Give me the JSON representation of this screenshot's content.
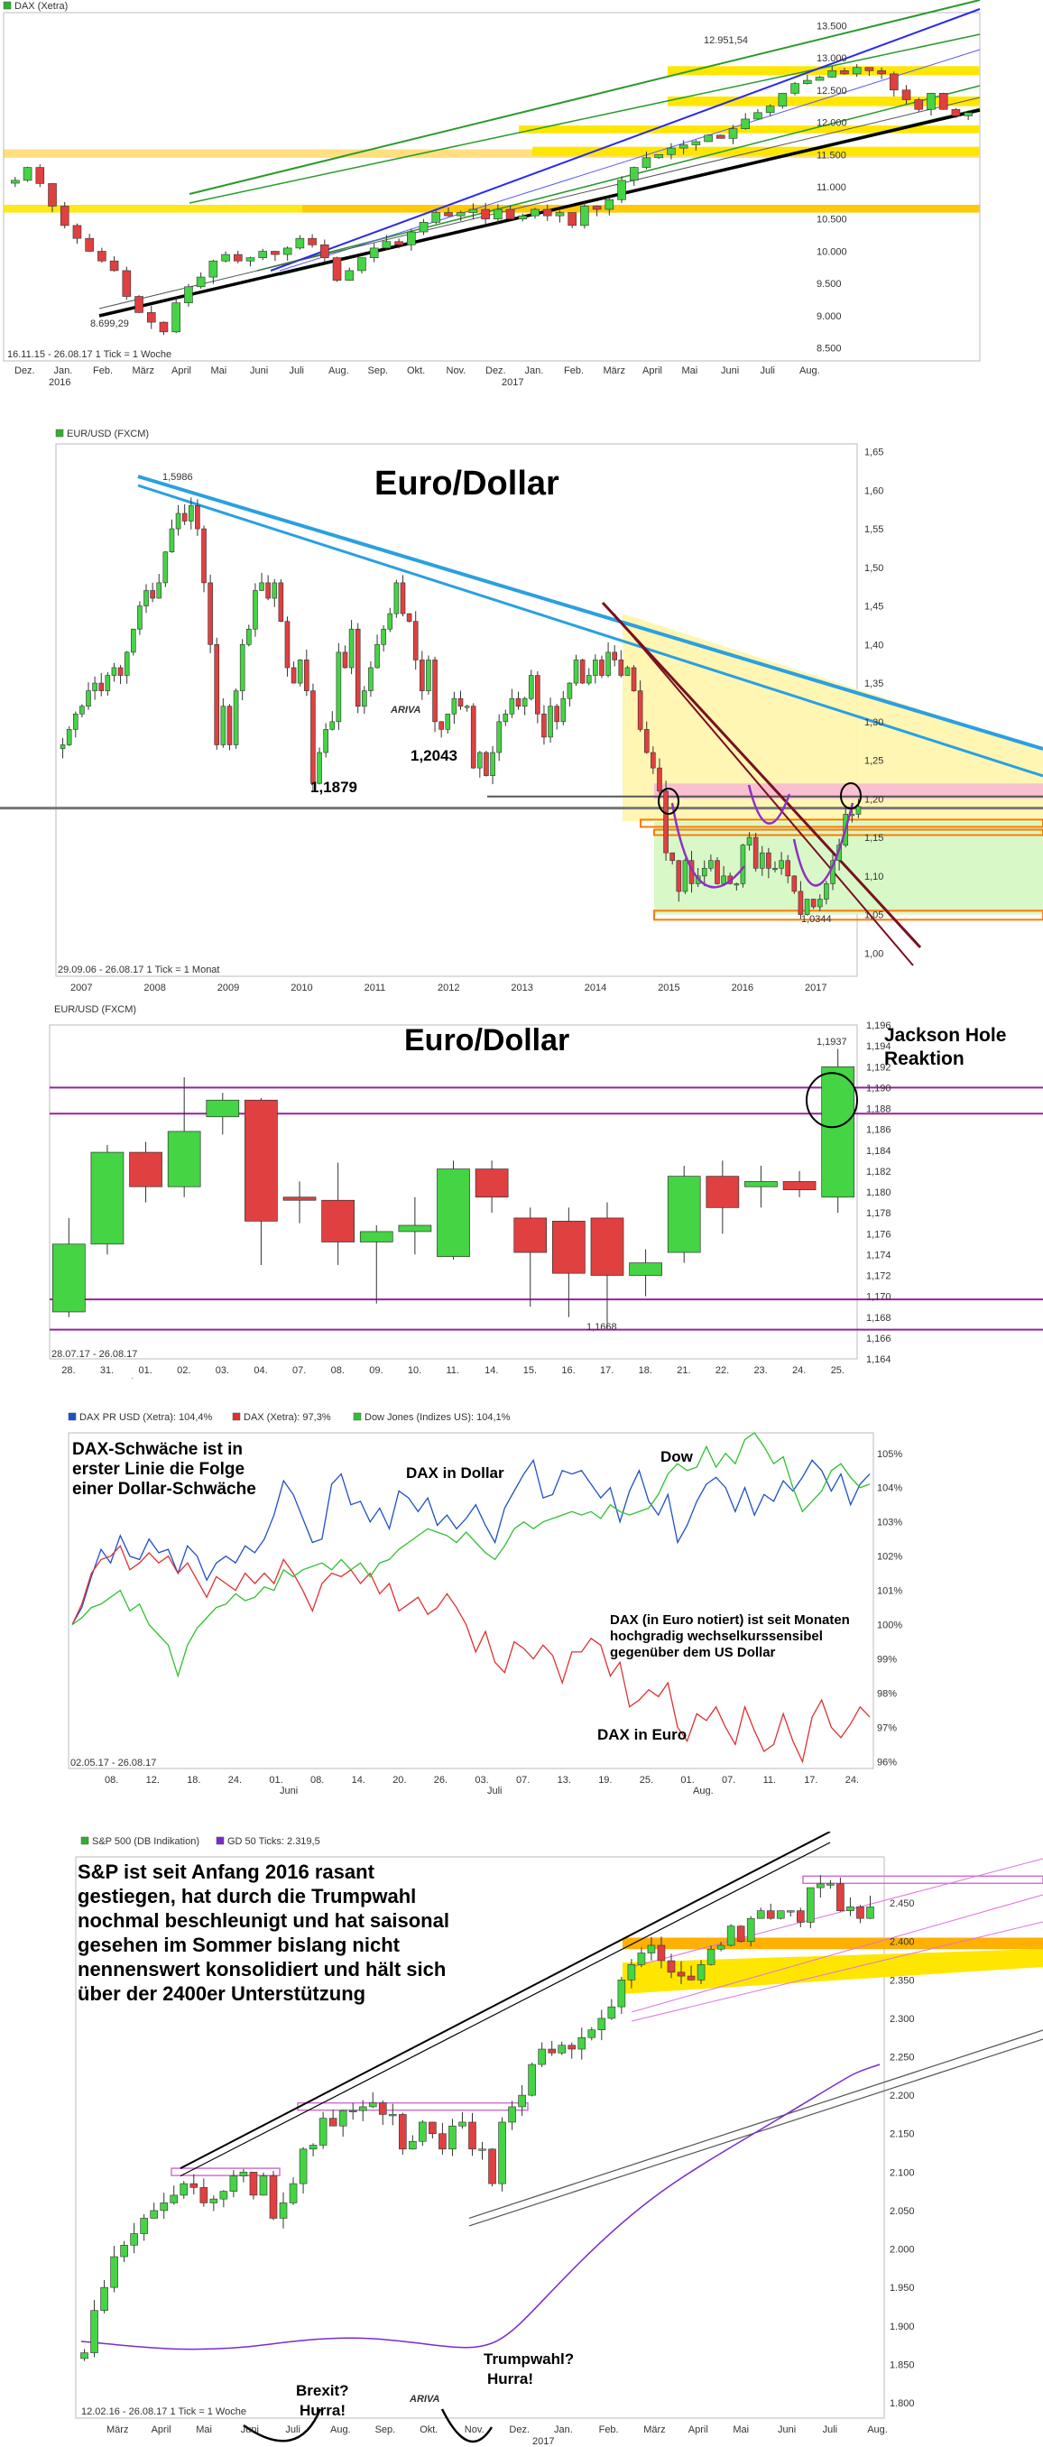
{
  "charts": {
    "dax": {
      "legend": "DAX (Xetra)",
      "yticks": [
        "13.500",
        "13.000",
        "12.500",
        "12.000",
        "11.500",
        "11.000",
        "10.500",
        "10.000",
        "9.500",
        "9.000",
        "8.500"
      ],
      "xticks": [
        "Dez.",
        "Jan.",
        "Feb.",
        "März",
        "April",
        "Mai",
        "Juni",
        "Juli",
        "Aug.",
        "Sep.",
        "Okt.",
        "Nov.",
        "Dez.",
        "Jan.",
        "Feb.",
        "März",
        "April",
        "Mai",
        "Juni",
        "Juli",
        "Aug."
      ],
      "xyear": [
        "2016",
        "2017"
      ],
      "low_label": "8.699,29",
      "high_label": "12.951,54",
      "footer": "16.11.15 - 26.08.17    1 Tick = 1 Woche"
    },
    "eurusd_long": {
      "legend": "EUR/USD (FXCM)",
      "title": "Euro/Dollar",
      "yticks": [
        "1,65",
        "1,60",
        "1,55",
        "1,50",
        "1,45",
        "1,40",
        "1,35",
        "1,30",
        "1,25",
        "1,20",
        "1,15",
        "1,10",
        "1,05",
        "1,00"
      ],
      "xticks": [
        "2007",
        "2008",
        "2009",
        "2010",
        "2011",
        "2012",
        "2013",
        "2014",
        "2015",
        "2016",
        "2017"
      ],
      "ann_1879": "1,1879",
      "ann_2043": "1,2043",
      "high_label": "1,5986",
      "low_label": "1,0344",
      "footer": "29.09.06 - 26.08.17    1 Tick = 1 Monat",
      "watermark": "ARIVA"
    },
    "eurusd_short": {
      "legend": "EUR/USD (FXCM)",
      "title": "Euro/Dollar",
      "note1": "Jackson Hole",
      "note2": "Reaktion",
      "yticks": [
        "1,196",
        "1,194",
        "1,192",
        "1,190",
        "1,188",
        "1,186",
        "1,184",
        "1,182",
        "1,180",
        "1,178",
        "1,176",
        "1,174",
        "1,172",
        "1,170",
        "1,168",
        "1,166",
        "1,164"
      ],
      "xticks": [
        "28.",
        "31.",
        "01.",
        "02.",
        "03.",
        "04.",
        "07.",
        "08.",
        "09.",
        "10.",
        "11.",
        "14.",
        "15.",
        "16.",
        "17.",
        "18.",
        "21.",
        "22.",
        "23.",
        "24.",
        "25."
      ],
      "xmonth": "Aug.",
      "high_label": "1,1937",
      "low_label": "1,1668",
      "footer": "28.07.17 - 26.08.17"
    },
    "compare": {
      "legend1": "DAX PR USD (Xetra): 104,4%",
      "legend2": "DAX (Xetra): 97,3%",
      "legend3": "Dow Jones (Indizes US): 104,1%",
      "note_a1": "DAX-Schwäche ist in",
      "note_a2": "erster Linie die Folge",
      "note_a3": "einer Dollar-Schwäche",
      "label_usd": "DAX in Dollar",
      "label_dow": "Dow",
      "label_eur": "DAX in Euro",
      "note_b1": "DAX (in Euro notiert) ist seit Monaten",
      "note_b2": "hochgradig wechselkurssensibel",
      "note_b3": "gegenüber dem US Dollar",
      "yticks": [
        "105%",
        "104%",
        "103%",
        "102%",
        "101%",
        "100%",
        "99%",
        "98%",
        "97%",
        "96%"
      ],
      "xticks": [
        "08.",
        "12.",
        "18.",
        "24.",
        "01.",
        "08.",
        "14.",
        "20.",
        "26.",
        "03.",
        "07.",
        "13.",
        "19.",
        "25.",
        "01.",
        "07.",
        "11.",
        "17.",
        "24."
      ],
      "xmonth1": "Juni",
      "xmonth2": "Juli",
      "xmonth3": "Aug.",
      "footer": "02.05.17 - 26.08.17"
    },
    "spx": {
      "legend1": "S&P 500 (DB Indikation)",
      "legend2": "GD 50 Ticks: 2.319,5",
      "note1": "S&P ist seit Anfang 2016 rasant",
      "note2": "gestiegen, hat durch die Trumpwahl",
      "note3": "nochmal beschleunigt und hat saisonal",
      "note4": "gesehen im Sommer bislang nicht",
      "note5": "nennenswert konsolidiert und hält sich",
      "note6": "über der 2400er Unterstützung",
      "brexit1": "Brexit?",
      "brexit2": "Hurra!",
      "trump1": "Trumpwahl?",
      "trump2": "Hurra!",
      "yticks": [
        "2.450",
        "2.400",
        "2.350",
        "2.300",
        "2.250",
        "2.200",
        "2.150",
        "2.100",
        "2.050",
        "2.000",
        "1.950",
        "1.900",
        "1.850",
        "1.800"
      ],
      "xticks": [
        "März",
        "April",
        "Mai",
        "Juni",
        "Juli",
        "Aug.",
        "Sep.",
        "Okt.",
        "Nov.",
        "Dez.",
        "Jan.",
        "Feb.",
        "März",
        "April",
        "Mai",
        "Juni",
        "Juli",
        "Aug."
      ],
      "xyear": "2017",
      "footer": "12.02.16 - 26.08.17    1 Tick = 1 Woche",
      "watermark": "ARIVA"
    }
  },
  "chart_data": [
    {
      "type": "candlestick",
      "title": "DAX (Xetra)",
      "interval": "weekly",
      "ylim": [
        8300,
        13700
      ],
      "closes": [
        11100,
        11300,
        11050,
        10700,
        10400,
        10200,
        10000,
        9850,
        9700,
        9300,
        9050,
        8900,
        8750,
        9200,
        9450,
        9600,
        9850,
        9950,
        9850,
        9900,
        10000,
        9950,
        10050,
        10200,
        10100,
        9900,
        9550,
        9700,
        9900,
        10050,
        10150,
        10100,
        10300,
        10450,
        10600,
        10550,
        10600,
        10650,
        10500,
        10650,
        10500,
        10550,
        10650,
        10550,
        10600,
        10400,
        10700,
        10650,
        10800,
        11100,
        11300,
        11450,
        11500,
        11600,
        11650,
        11700,
        11800,
        11750,
        11900,
        12050,
        12150,
        12250,
        12450,
        12600,
        12650,
        12700,
        12800,
        12750,
        12850,
        12800,
        12750,
        12500,
        12350,
        12200,
        12450,
        12200,
        12100,
        12150
      ]
    },
    {
      "type": "candlestick",
      "title": "Euro/Dollar",
      "interval": "monthly",
      "ylim": [
        0.97,
        1.66
      ],
      "closes": [
        1.27,
        1.29,
        1.31,
        1.32,
        1.34,
        1.35,
        1.34,
        1.36,
        1.37,
        1.36,
        1.39,
        1.42,
        1.45,
        1.47,
        1.46,
        1.48,
        1.52,
        1.55,
        1.57,
        1.56,
        1.58,
        1.55,
        1.48,
        1.4,
        1.27,
        1.32,
        1.27,
        1.34,
        1.4,
        1.42,
        1.47,
        1.48,
        1.46,
        1.48,
        1.43,
        1.37,
        1.35,
        1.38,
        1.34,
        1.22,
        1.26,
        1.29,
        1.3,
        1.39,
        1.37,
        1.42,
        1.32,
        1.34,
        1.37,
        1.4,
        1.42,
        1.44,
        1.48,
        1.44,
        1.43,
        1.38,
        1.34,
        1.38,
        1.3,
        1.29,
        1.31,
        1.33,
        1.32,
        1.32,
        1.24,
        1.26,
        1.23,
        1.26,
        1.3,
        1.31,
        1.33,
        1.32,
        1.33,
        1.36,
        1.31,
        1.28,
        1.32,
        1.3,
        1.33,
        1.35,
        1.38,
        1.35,
        1.36,
        1.38,
        1.36,
        1.39,
        1.38,
        1.36,
        1.37,
        1.34,
        1.29,
        1.26,
        1.24,
        1.21,
        1.13,
        1.12,
        1.08,
        1.12,
        1.09,
        1.1,
        1.11,
        1.12,
        1.09,
        1.1,
        1.09,
        1.09,
        1.14,
        1.15,
        1.11,
        1.13,
        1.11,
        1.11,
        1.12,
        1.1,
        1.08,
        1.05,
        1.07,
        1.06,
        1.07,
        1.09,
        1.12,
        1.14,
        1.18,
        1.18,
        1.19
      ]
    },
    {
      "type": "candlestick",
      "title": "Euro/Dollar",
      "interval": "daily",
      "categories": [
        "28.",
        "31.",
        "01.",
        "02.",
        "03.",
        "04.",
        "07.",
        "08.",
        "09.",
        "10.",
        "11.",
        "14.",
        "15.",
        "16.",
        "17.",
        "18.",
        "21.",
        "22.",
        "23.",
        "24.",
        "25."
      ],
      "open": [
        1.1685,
        1.175,
        1.1838,
        1.1805,
        1.1872,
        1.1888,
        1.1795,
        1.1792,
        1.1752,
        1.1762,
        1.1738,
        1.1822,
        1.1775,
        1.1772,
        1.1775,
        1.172,
        1.1742,
        1.1815,
        1.1805,
        1.181,
        1.1795
      ],
      "close": [
        1.175,
        1.1838,
        1.1805,
        1.1858,
        1.1888,
        1.1772,
        1.1792,
        1.1752,
        1.1762,
        1.1768,
        1.1822,
        1.1795,
        1.1742,
        1.1722,
        1.172,
        1.1732,
        1.1815,
        1.1785,
        1.181,
        1.1802,
        1.192
      ],
      "high": [
        1.1775,
        1.1845,
        1.1848,
        1.191,
        1.1895,
        1.189,
        1.181,
        1.1828,
        1.1768,
        1.1795,
        1.183,
        1.183,
        1.1785,
        1.1785,
        1.179,
        1.1745,
        1.1825,
        1.183,
        1.1825,
        1.182,
        1.1937
      ],
      "low": [
        1.168,
        1.174,
        1.179,
        1.1795,
        1.1855,
        1.173,
        1.177,
        1.173,
        1.1693,
        1.174,
        1.1735,
        1.178,
        1.169,
        1.168,
        1.1668,
        1.17,
        1.1732,
        1.176,
        1.1785,
        1.1795,
        1.178
      ],
      "ylim": [
        1.164,
        1.196
      ]
    },
    {
      "type": "line",
      "title": "",
      "ylim": [
        95.8,
        105.6
      ],
      "series": [
        {
          "name": "DAX PR USD (Xetra): 104,4%",
          "color": "#1f4fc8",
          "values": [
            100,
            100.5,
            101.4,
            102.2,
            101.8,
            102.6,
            102.0,
            101.9,
            102.5,
            102.1,
            102.2,
            101.5,
            102.3,
            102.0,
            101.3,
            101.8,
            102.0,
            101.8,
            102.3,
            102.1,
            102.5,
            103.2,
            104.2,
            103.8,
            103.1,
            102.4,
            102.5,
            104.1,
            104.4,
            103.5,
            103.6,
            103.0,
            103.4,
            102.8,
            103.9,
            103.7,
            103.3,
            103.7,
            102.9,
            103.2,
            102.8,
            103.1,
            103.5,
            102.9,
            102.4,
            103.4,
            103.9,
            104.4,
            104.8,
            103.7,
            103.8,
            104.5,
            104.4,
            104.5,
            104.1,
            103.7,
            104.0,
            103.0,
            103.9,
            104.5,
            103.6,
            103.2,
            103.8,
            102.4,
            102.9,
            103.6,
            104.1,
            104.3,
            104.0,
            103.3,
            104.0,
            103.2,
            103.8,
            103.6,
            104.2,
            103.9,
            104.3,
            104.8,
            104.5,
            103.9,
            104.4,
            103.5,
            104.1,
            104.4
          ]
        },
        {
          "name": "DAX (Xetra): 97,3%",
          "color": "#e03030",
          "values": [
            100,
            100.6,
            101.5,
            101.9,
            102.0,
            102.3,
            101.6,
            101.8,
            102.1,
            101.8,
            102.0,
            101.5,
            101.8,
            101.3,
            100.8,
            101.4,
            101.2,
            101.0,
            101.5,
            101.2,
            101.5,
            101.2,
            101.9,
            101.5,
            101.0,
            100.4,
            101.2,
            101.5,
            101.4,
            101.6,
            101.2,
            101.5,
            100.9,
            101.2,
            100.4,
            100.6,
            100.8,
            100.3,
            100.5,
            100.9,
            100.5,
            100.0,
            99.2,
            99.8,
            98.9,
            98.6,
            99.5,
            99.3,
            99.0,
            99.4,
            99.1,
            98.3,
            99.2,
            99.2,
            99.6,
            99.4,
            98.5,
            98.9,
            97.6,
            97.8,
            98.1,
            97.9,
            98.3,
            97.0,
            96.6,
            97.4,
            97.2,
            97.6,
            97.0,
            96.5,
            97.6,
            96.9,
            96.3,
            96.5,
            97.4,
            96.6,
            96.0,
            97.3,
            97.8,
            97.0,
            96.7,
            97.1,
            97.6,
            97.3
          ]
        },
        {
          "name": "Dow Jones (Indizes US): 104,1%",
          "color": "#30c030",
          "values": [
            100,
            100.2,
            100.5,
            100.6,
            100.8,
            101.0,
            100.4,
            100.6,
            100.0,
            99.7,
            99.4,
            98.5,
            99.4,
            99.9,
            100.2,
            100.5,
            100.6,
            100.9,
            100.7,
            100.8,
            101.1,
            101.0,
            101.6,
            101.4,
            101.6,
            101.7,
            101.8,
            101.6,
            101.9,
            101.6,
            101.8,
            101.4,
            101.8,
            101.9,
            102.2,
            102.4,
            102.6,
            102.8,
            102.7,
            102.6,
            102.4,
            102.7,
            102.4,
            102.1,
            101.9,
            102.3,
            102.8,
            103.0,
            102.8,
            103.0,
            103.1,
            103.2,
            103.3,
            103.2,
            103.3,
            103.1,
            103.5,
            103.3,
            103.2,
            103.3,
            103.4,
            103.8,
            104.4,
            104.7,
            104.5,
            104.6,
            105.2,
            104.6,
            105.0,
            104.7,
            105.4,
            105.6,
            105.2,
            104.7,
            104.9,
            104.0,
            103.3,
            103.6,
            103.9,
            104.5,
            104.7,
            104.3,
            104.0,
            104.1
          ]
        }
      ]
    },
    {
      "type": "candlestick",
      "title": "S&P 500 (DB Indikation)",
      "interval": "weekly",
      "ylim": [
        1780,
        2510
      ],
      "closes": [
        1865,
        1920,
        1950,
        1990,
        2005,
        2020,
        2040,
        2050,
        2060,
        2070,
        2085,
        2080,
        2060,
        2065,
        2075,
        2095,
        2100,
        2070,
        2095,
        2040,
        2060,
        2085,
        2130,
        2135,
        2170,
        2160,
        2180,
        2180,
        2185,
        2190,
        2175,
        2175,
        2130,
        2140,
        2165,
        2150,
        2130,
        2160,
        2165,
        2130,
        2130,
        2085,
        2165,
        2185,
        2200,
        2240,
        2260,
        2255,
        2265,
        2260,
        2275,
        2285,
        2300,
        2315,
        2350,
        2370,
        2385,
        2395,
        2375,
        2360,
        2355,
        2350,
        2370,
        2390,
        2395,
        2420,
        2400,
        2430,
        2440,
        2430,
        2440,
        2440,
        2425,
        2470,
        2475,
        2475,
        2440,
        2445,
        2430,
        2445
      ]
    }
  ]
}
